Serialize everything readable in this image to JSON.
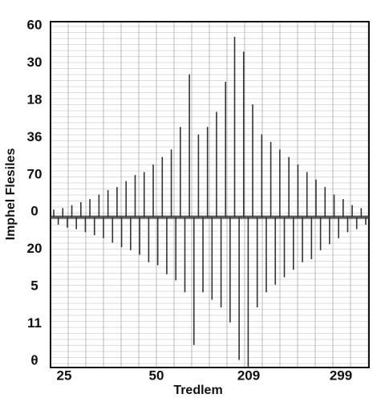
{
  "chart_data": {
    "type": "waveform",
    "xlabel": "Tredlem",
    "ylabel": "Imphel Flesiles",
    "x_labels": [
      "25",
      "50",
      "209",
      "299"
    ],
    "y_labels": [
      "60",
      "30",
      "18",
      "36",
      "70",
      "0",
      "20",
      "5",
      "11",
      "θ"
    ],
    "ylim": [
      -1,
      1.3
    ],
    "grid": true,
    "color": "#333333",
    "values": [
      0.05,
      -0.05,
      0.06,
      -0.07,
      0.08,
      -0.08,
      0.1,
      -0.1,
      0.12,
      -0.12,
      0.15,
      -0.14,
      0.18,
      -0.17,
      0.2,
      -0.2,
      0.24,
      -0.22,
      0.28,
      -0.25,
      0.3,
      -0.3,
      0.35,
      -0.32,
      0.4,
      -0.38,
      0.45,
      -0.42,
      0.6,
      -0.5,
      0.95,
      -0.85,
      0.55,
      -0.5,
      0.6,
      -0.55,
      0.7,
      -0.6,
      0.9,
      -0.7,
      1.2,
      -0.95,
      1.1,
      -1.0,
      0.75,
      -0.6,
      0.55,
      -0.5,
      0.5,
      -0.45,
      0.45,
      -0.4,
      0.4,
      -0.35,
      0.35,
      -0.3,
      0.3,
      -0.28,
      0.25,
      -0.22,
      0.2,
      -0.18,
      0.15,
      -0.14,
      0.12,
      -0.1,
      0.08,
      -0.08,
      0.06,
      -0.05
    ]
  }
}
